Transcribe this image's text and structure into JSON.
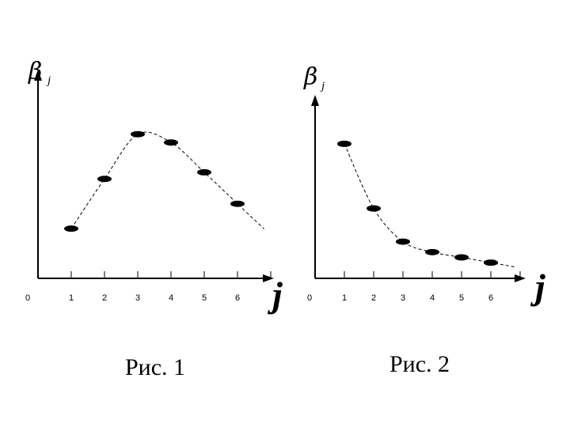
{
  "chart_data": [
    {
      "type": "scatter",
      "title": "",
      "caption": "Рис. 1",
      "ylabel": {
        "symbol": "β",
        "subscript": "j"
      },
      "xlabel": "j",
      "origin_label": "0",
      "x_ticks": [
        "1",
        "2",
        "3",
        "4",
        "5",
        "6"
      ],
      "x": [
        1,
        2,
        3,
        4,
        5,
        6
      ],
      "y": [
        0.3,
        0.6,
        0.87,
        0.82,
        0.64,
        0.45
      ],
      "ylim": [
        0,
        1.26
      ],
      "xlim": [
        0,
        7.0
      ],
      "trend_line": "dashed"
    },
    {
      "type": "scatter",
      "title": "",
      "caption": "Рис. 2",
      "ylabel": {
        "symbol": "β",
        "subscript": "j"
      },
      "xlabel": "j",
      "origin_label": "0",
      "x_ticks": [
        "1",
        "2",
        "3",
        "4",
        "5",
        "6"
      ],
      "x": [
        1,
        2,
        3,
        4,
        5,
        6
      ],
      "y": [
        0.77,
        0.4,
        0.21,
        0.15,
        0.12,
        0.09
      ],
      "ylim": [
        0,
        1.05
      ],
      "xlim": [
        0,
        7.0
      ],
      "trend_line": "dashed"
    }
  ]
}
